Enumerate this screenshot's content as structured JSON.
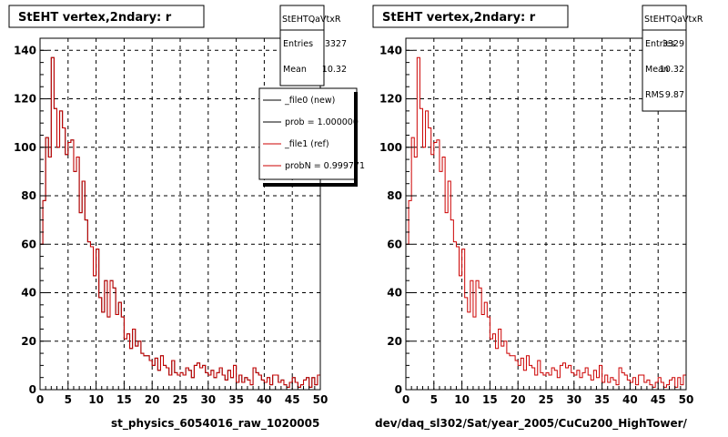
{
  "panels": [
    {
      "title": "StEHT  vertex,2ndary: r",
      "footer_label": "st_physics_6054016_raw_1020005",
      "stats": {
        "name": "StEHTQaVtxR",
        "rows": [
          {
            "label": "Entries",
            "value": "3327"
          },
          {
            "label": "Mean",
            "value": "10.32"
          }
        ]
      },
      "legend": {
        "entries": [
          {
            "label": "_file0 (new)",
            "color": "#000000"
          },
          {
            "label": "prob = 1.000000",
            "color": "#000000"
          },
          {
            "label": "_file1 (ref)",
            "color": "#cc0000"
          },
          {
            "label": "probN = 0.999771",
            "color": "#cc0000"
          }
        ]
      }
    },
    {
      "title": "StEHT  vertex,2ndary: r",
      "footer_label": "dev/daq_sl302/Sat/year_2005/CuCu200_HighTower/",
      "stats": {
        "name": "StEHTQaVtxR",
        "rows": [
          {
            "label": "Entries",
            "value": "3329"
          },
          {
            "label": "Mean",
            "value": "10.32"
          },
          {
            "label": "RMS",
            "value": "9.87"
          }
        ]
      }
    }
  ],
  "chart_data": [
    {
      "type": "line",
      "title": "StEHT  vertex,2ndary: r",
      "xlabel": "",
      "ylabel": "",
      "xlim": [
        0,
        50
      ],
      "ylim": [
        0,
        145
      ],
      "x_ticks": [
        0,
        5,
        10,
        15,
        20,
        25,
        30,
        35,
        40,
        45,
        50
      ],
      "y_ticks": [
        0,
        20,
        40,
        60,
        80,
        100,
        120,
        140
      ],
      "grid": true,
      "legend_position": "top-right",
      "bin_width": 0.5,
      "x_start": 0,
      "series": [
        {
          "name": "_file0 (new)",
          "color": "#000000",
          "values": [
            60,
            78,
            104,
            96,
            137,
            116,
            100,
            115,
            108,
            97,
            102,
            103,
            90,
            96,
            73,
            86,
            70,
            61,
            59,
            47,
            58,
            38,
            32,
            45,
            30,
            45,
            42,
            31,
            36,
            30,
            21,
            23,
            17,
            25,
            18,
            20,
            15,
            14,
            14,
            12,
            10,
            13,
            8,
            14,
            10,
            9,
            6,
            12,
            7,
            6,
            7,
            6,
            9,
            8,
            5,
            10,
            11,
            9,
            10,
            7,
            6,
            8,
            5,
            7,
            9,
            6,
            4,
            8,
            5,
            10,
            3,
            6,
            3,
            5,
            4,
            2,
            9,
            7,
            6,
            4,
            3,
            5,
            2,
            6,
            6,
            3,
            4,
            2,
            1,
            3,
            5,
            3,
            1,
            2,
            4,
            5,
            1,
            5,
            2,
            6
          ]
        },
        {
          "name": "_file1 (ref)",
          "color": "#cc0000",
          "values": [
            60,
            78,
            104,
            96,
            137,
            116,
            100,
            115,
            108,
            97,
            102,
            103,
            90,
            96,
            73,
            86,
            70,
            61,
            59,
            47,
            58,
            38,
            32,
            45,
            30,
            45,
            42,
            31,
            36,
            30,
            21,
            23,
            17,
            25,
            18,
            20,
            15,
            14,
            14,
            12,
            10,
            13,
            8,
            14,
            10,
            9,
            6,
            12,
            7,
            6,
            7,
            6,
            9,
            8,
            5,
            10,
            11,
            9,
            10,
            7,
            6,
            8,
            5,
            7,
            9,
            6,
            4,
            8,
            5,
            10,
            3,
            6,
            3,
            5,
            4,
            2,
            9,
            7,
            6,
            4,
            3,
            5,
            2,
            6,
            6,
            3,
            4,
            2,
            1,
            3,
            5,
            3,
            1,
            2,
            4,
            5,
            1,
            5,
            2,
            6
          ]
        }
      ]
    },
    {
      "type": "line",
      "title": "StEHT  vertex,2ndary: r",
      "xlabel": "",
      "ylabel": "",
      "xlim": [
        0,
        50
      ],
      "ylim": [
        0,
        145
      ],
      "x_ticks": [
        0,
        5,
        10,
        15,
        20,
        25,
        30,
        35,
        40,
        45,
        50
      ],
      "y_ticks": [
        0,
        20,
        40,
        60,
        80,
        100,
        120,
        140
      ],
      "grid": true,
      "bin_width": 0.5,
      "x_start": 0,
      "series": [
        {
          "color": "#cc0000",
          "values": [
            60,
            78,
            104,
            96,
            137,
            116,
            100,
            115,
            108,
            97,
            102,
            103,
            90,
            96,
            73,
            86,
            70,
            61,
            59,
            47,
            58,
            38,
            32,
            45,
            30,
            45,
            42,
            31,
            36,
            30,
            21,
            23,
            17,
            25,
            18,
            20,
            15,
            14,
            14,
            12,
            10,
            13,
            8,
            14,
            10,
            9,
            6,
            12,
            7,
            6,
            7,
            6,
            9,
            8,
            5,
            10,
            11,
            9,
            10,
            7,
            6,
            8,
            5,
            7,
            9,
            6,
            4,
            8,
            5,
            10,
            3,
            6,
            3,
            5,
            4,
            2,
            9,
            7,
            6,
            4,
            3,
            5,
            2,
            6,
            6,
            3,
            4,
            2,
            1,
            3,
            5,
            3,
            1,
            2,
            4,
            5,
            1,
            5,
            2,
            6
          ]
        }
      ]
    }
  ]
}
